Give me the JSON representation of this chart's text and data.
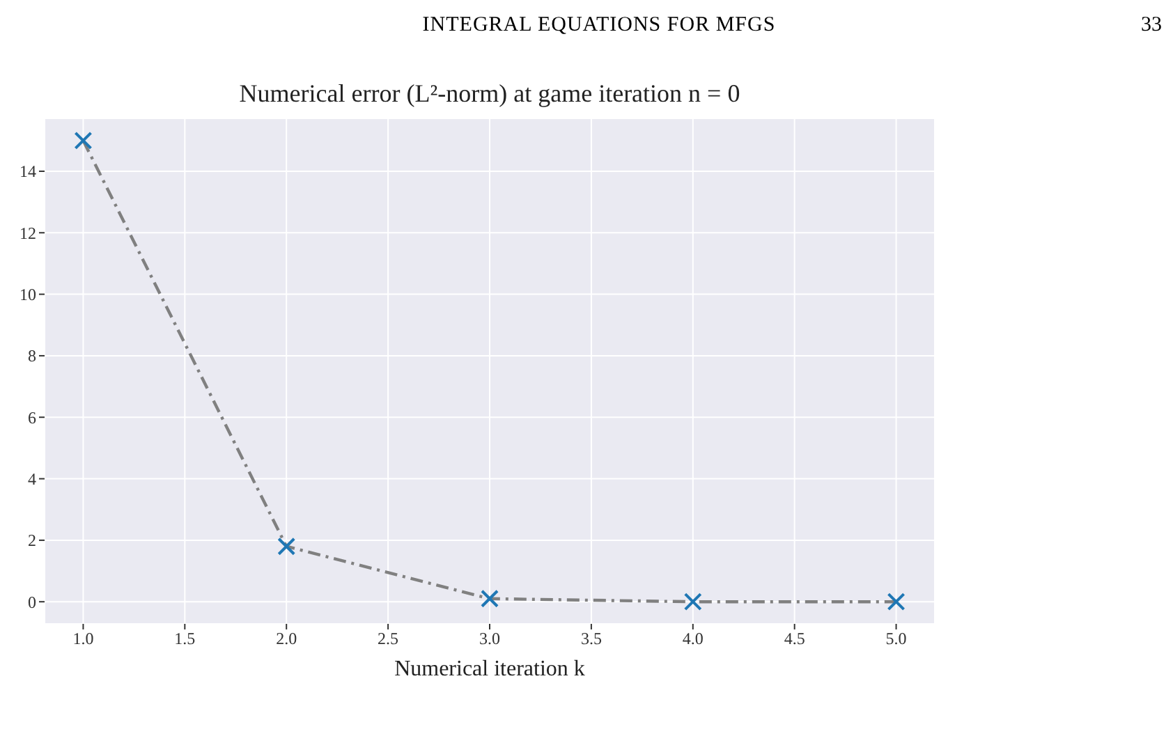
{
  "chart_data": {
    "type": "line",
    "title": "Numerical error (L²-norm) at game iteration n = 0",
    "xlabel": "Numerical iteration k",
    "annotations": [
      "INTEGRAL EQUATIONS FOR MFGS",
      "33"
    ],
    "x": [
      1,
      2,
      3,
      4,
      5
    ],
    "series": [
      {
        "color": "#808080",
        "values": [
          15.0,
          1.8,
          0.1,
          0.0,
          0.0
        ],
        "marker": "none",
        "line_style": "dashed"
      },
      {
        "type": "scatter",
        "color": "#1f77b4",
        "values": [
          15.0,
          1.8,
          0.1,
          0.0,
          0.0
        ],
        "marker": "cross"
      }
    ],
    "xlim": [
      0.81,
      5.19
    ],
    "xticks": [
      {
        "value": 1,
        "label": "1.0"
      },
      1.5,
      {
        "value": 2,
        "label": "2.0"
      },
      2.5,
      {
        "value": 3,
        "label": "3.0"
      },
      3.5,
      {
        "value": 4,
        "label": "4.0"
      },
      4.5,
      {
        "value": 5,
        "label": "5.0"
      }
    ],
    "ylim": [
      -0.72,
      15.72
    ],
    "yticks": [
      0,
      2,
      4,
      6,
      8,
      10,
      12,
      14
    ],
    "grid": true
  }
}
